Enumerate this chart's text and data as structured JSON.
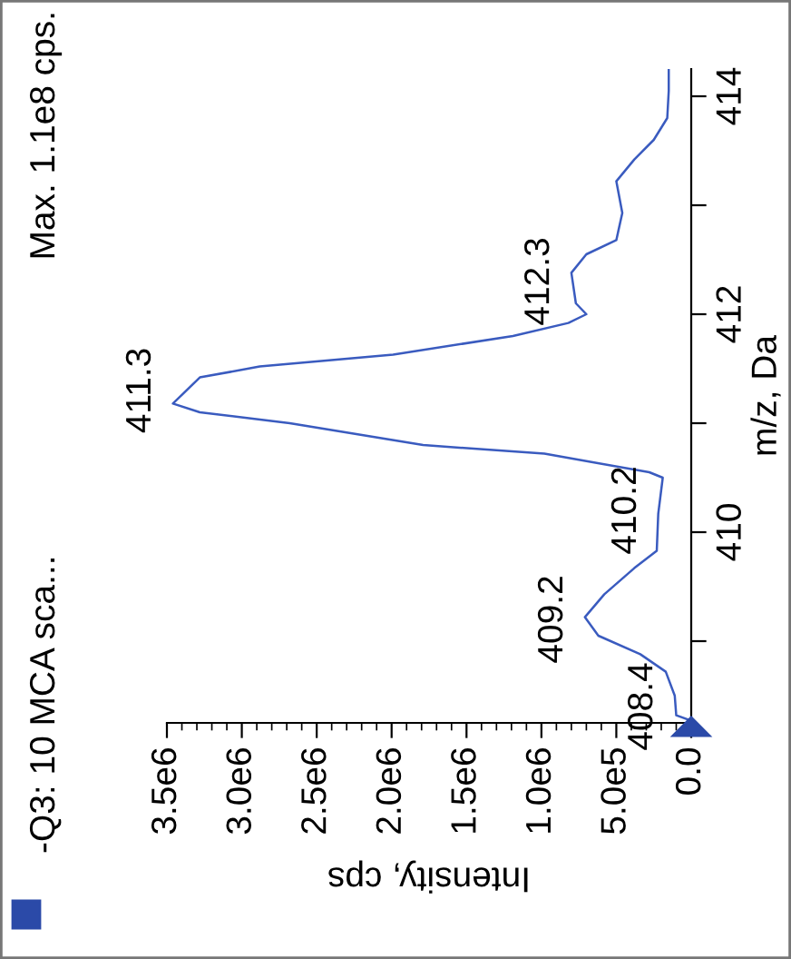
{
  "chart_data": {
    "type": "line",
    "orientation": "horizontal",
    "title": "-Q3: 10 MCA sca...",
    "annotations": [
      "Max. 1.1e8 cps.",
      {
        "text": "408.4",
        "x": 110000,
        "y": 408.4
      },
      {
        "text": "409.2",
        "x": 710000,
        "y": 409.2
      },
      {
        "text": "410.2",
        "x": 220000,
        "y": 410.2
      },
      {
        "text": "411.3",
        "x": 3460000,
        "y": 411.3
      },
      {
        "text": "412.3",
        "x": 800000,
        "y": 412.3
      }
    ],
    "xlabel": "Intensity, cps",
    "ylabel": "m/z, Da",
    "x": [
      408.27,
      408.32,
      408.5,
      408.72,
      408.88,
      409.05,
      409.22,
      409.43,
      409.67,
      409.83,
      410.17,
      410.5,
      410.55,
      410.72,
      410.8,
      411.0,
      411.1,
      411.18,
      411.42,
      411.52,
      411.63,
      411.8,
      411.92,
      412.0,
      412.1,
      412.38,
      412.55,
      412.68,
      412.93,
      413.22,
      413.42,
      413.6,
      413.8,
      414.05,
      414.25
    ],
    "series": [
      {
        "color": "#3a5bbf",
        "values": [
          0,
          100000,
          110000,
          170000,
          340000,
          620000,
          710000,
          580000,
          380000,
          230000,
          220000,
          190000,
          280000,
          980000,
          1790000,
          2680000,
          3280000,
          3460000,
          3280000,
          2880000,
          1990000,
          1190000,
          820000,
          700000,
          770000,
          800000,
          700000,
          500000,
          460000,
          500000,
          380000,
          250000,
          160000,
          150000,
          150000
        ]
      }
    ],
    "ylim": [
      408.25,
      414.25
    ],
    "yticks": [
      {
        "value": 409,
        "label": null
      },
      410,
      {
        "value": 411,
        "label": null
      },
      412,
      {
        "value": 413,
        "label": null
      },
      414
    ],
    "xlim": [
      3500000,
      0
    ],
    "xticks": [
      {
        "value": 0,
        "label": "0.0"
      },
      {
        "value": 500000,
        "label": "5.0e5"
      },
      {
        "value": 1000000,
        "label": "1.0e6"
      },
      {
        "value": 1500000,
        "label": "1.5e6"
      },
      {
        "value": 2000000,
        "label": "2.0e6"
      },
      {
        "value": 2500000,
        "label": "2.5e6"
      },
      {
        "value": 3000000,
        "label": "3.0e6"
      },
      {
        "value": 3500000,
        "label": "3.5e6"
      }
    ],
    "grid": false
  }
}
